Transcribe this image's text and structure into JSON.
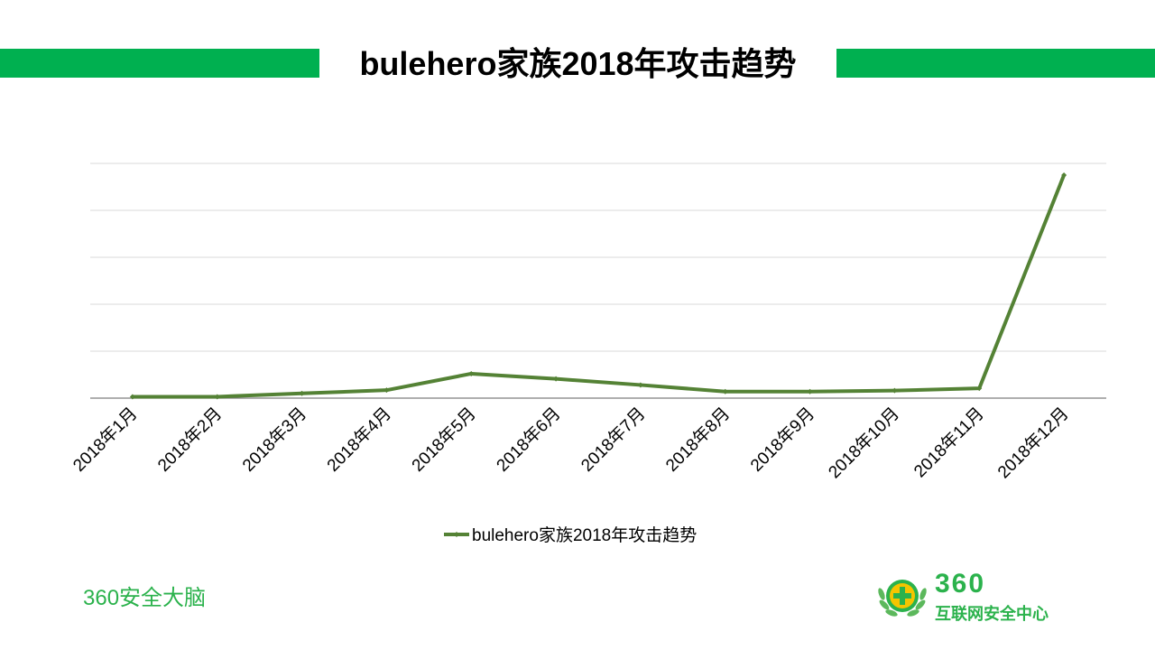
{
  "header": {
    "title": "bulehero家族2018年攻击趋势"
  },
  "chart_data": {
    "type": "line",
    "title": "",
    "categories": [
      "2018年1月",
      "2018年2月",
      "2018年3月",
      "2018年4月",
      "2018年5月",
      "2018年6月",
      "2018年7月",
      "2018年8月",
      "2018年9月",
      "2018年10月",
      "2018年11月",
      "2018年12月"
    ],
    "series": [
      {
        "name": "bulehero家族2018年攻击趋势",
        "values": [
          0.3,
          0.3,
          1.0,
          1.7,
          5.2,
          4.1,
          2.8,
          1.4,
          1.4,
          1.6,
          2.1,
          47.5
        ]
      }
    ],
    "ylim": [
      0,
      50
    ],
    "gridlines": [
      0,
      10,
      20,
      30,
      40,
      50
    ],
    "show_y_tick_labels": false,
    "grid": true,
    "legend": "bottom-center",
    "colors": {
      "line": "#548235",
      "grid": "#d9d9d9",
      "axis": "#7f7f7f"
    }
  },
  "footer": {
    "left_text": "360安全大脑",
    "logo_number": "360",
    "logo_subtitle": "互联网安全中心",
    "logo_icon": "360-shield-plus-icon"
  }
}
